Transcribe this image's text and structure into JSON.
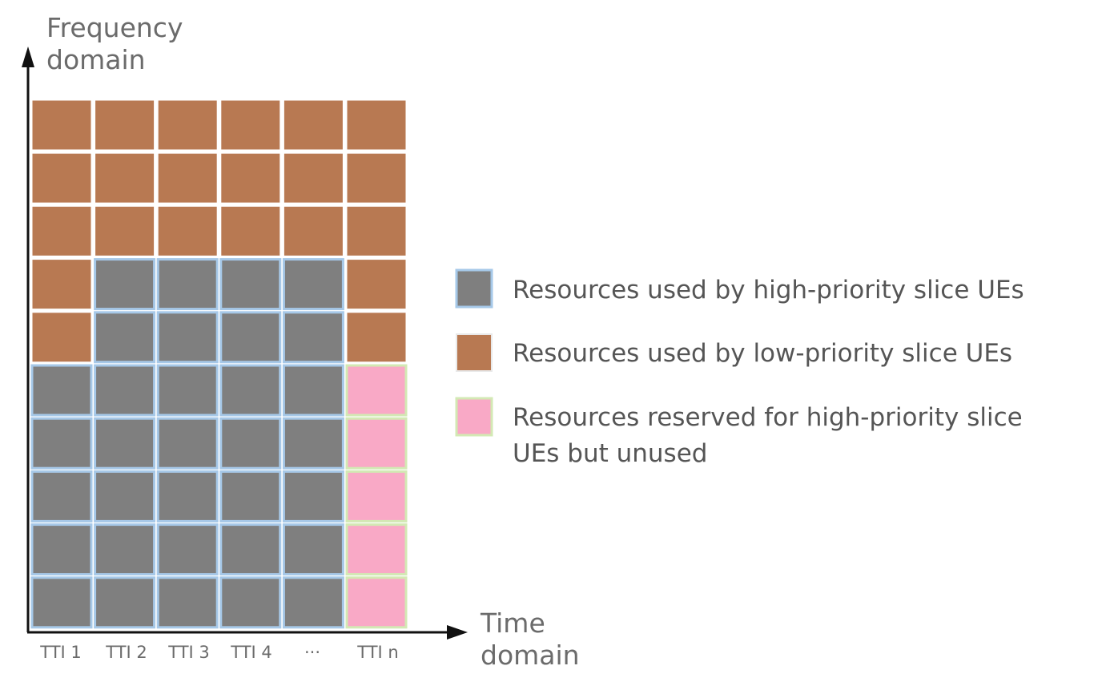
{
  "axes": {
    "y_label_line1": "Frequency",
    "y_label_line2": "domain",
    "x_label_line1": "Time",
    "x_label_line2": "domain"
  },
  "columns": [
    "TTI 1",
    "TTI 2",
    "TTI 3",
    "TTI 4",
    "···",
    "TTI n"
  ],
  "legend": {
    "high": {
      "label_line1": "Resources used by high-priority slice UEs",
      "label_line2": ""
    },
    "low": {
      "label_line1": "Resources used by low-priority slice UEs",
      "label_line2": ""
    },
    "reserved": {
      "label_line1": "Resources reserved for high-priority slice",
      "label_line2": "UEs but unused"
    }
  },
  "grid": {
    "rows_top_to_bottom": [
      [
        "low",
        "low",
        "low",
        "low",
        "low",
        "low"
      ],
      [
        "low",
        "low",
        "low",
        "low",
        "low",
        "low"
      ],
      [
        "low",
        "low",
        "low",
        "low",
        "low",
        "low"
      ],
      [
        "low",
        "high",
        "high",
        "high",
        "high",
        "low"
      ],
      [
        "low",
        "high",
        "high",
        "high",
        "high",
        "low"
      ],
      [
        "high",
        "high",
        "high",
        "high",
        "high",
        "reserved"
      ],
      [
        "high",
        "high",
        "high",
        "high",
        "high",
        "reserved"
      ],
      [
        "high",
        "high",
        "high",
        "high",
        "high",
        "reserved"
      ],
      [
        "high",
        "high",
        "high",
        "high",
        "high",
        "reserved"
      ],
      [
        "high",
        "high",
        "high",
        "high",
        "high",
        "reserved"
      ]
    ]
  },
  "colors": {
    "high": "#7f7f7f",
    "high_border": "#a6c8e8",
    "low": "#b87952",
    "low_border": "#ffffff",
    "reserved": "#f9a9c6",
    "reserved_border": "#d3e9b4",
    "axis": "#111111"
  }
}
